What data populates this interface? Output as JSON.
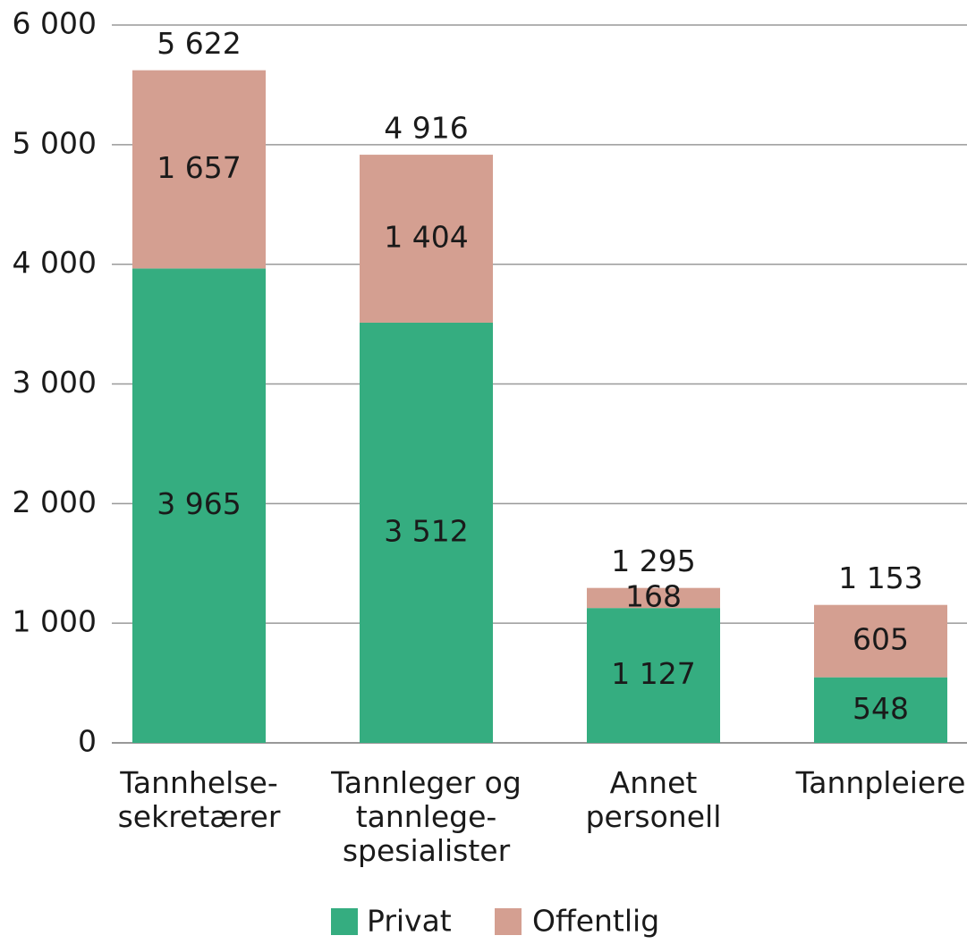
{
  "chart_data": {
    "type": "stacked_bar",
    "categories": [
      "Tannhelse-\nsekretærer",
      "Tannleger og\ntannlege-\nspesialister",
      "Annet\npersonell",
      "Tannpleiere"
    ],
    "series": [
      {
        "name": "Privat",
        "color": "#35ad80",
        "values": [
          3965,
          3512,
          1127,
          548
        ],
        "value_labels": [
          "3 965",
          "3 512",
          "1 127",
          "548"
        ]
      },
      {
        "name": "Offentlig",
        "color": "#d49f91",
        "values": [
          1657,
          1404,
          168,
          605
        ],
        "value_labels": [
          "1 657",
          "1 404",
          "168",
          "605"
        ]
      }
    ],
    "totals": [
      5622,
      4916,
      1295,
      1153
    ],
    "total_labels": [
      "5 622",
      "4 916",
      "1 295",
      "1 153"
    ],
    "ylim": [
      0,
      6000
    ],
    "yticks": [
      0,
      {
        "value": 1000,
        "label": "1 000"
      },
      {
        "value": 2000,
        "label": "2 000"
      },
      {
        "value": 3000,
        "label": "3 000"
      },
      {
        "value": 4000,
        "label": "4 000"
      },
      {
        "value": 5000,
        "label": "5 000"
      },
      {
        "value": 6000,
        "label": "6 000"
      }
    ],
    "grid": true,
    "legend": "bottom"
  }
}
